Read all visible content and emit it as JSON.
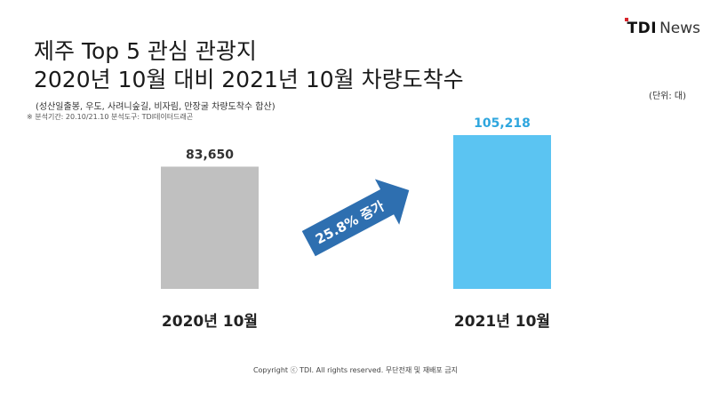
{
  "logo": {
    "brand_main": "TDI",
    "brand_sub": "News"
  },
  "title": {
    "line1": "제주 Top 5 관심 관광지",
    "line2": "2020년 10월 대비 2021년 10월 차량도착수"
  },
  "subtitle": "(성산일출봉, 우도, 사려니숲길, 비자림, 만장굴 차량도착수 합산)",
  "meta": "※ 분석기간: 20.10/21.10 분석도구: TDI데이터드래곤",
  "unit_label": "(단위: 대)",
  "chart_data": {
    "type": "bar",
    "categories": [
      "2020년 10월",
      "2021년 10월"
    ],
    "values": [
      83650,
      105218
    ],
    "value_labels": [
      "83,650",
      "105,218"
    ],
    "colors": [
      "#c0c0c0",
      "#5bc4f2"
    ],
    "value_label_colors": [
      "#333333",
      "#2ea6de"
    ],
    "annotation": {
      "text": "25.8% 증가",
      "color": "#2e6fb0"
    }
  },
  "footer": "Copyright ⓒ TDI. All rights reserved. 무단전재 및 재배포 금지"
}
